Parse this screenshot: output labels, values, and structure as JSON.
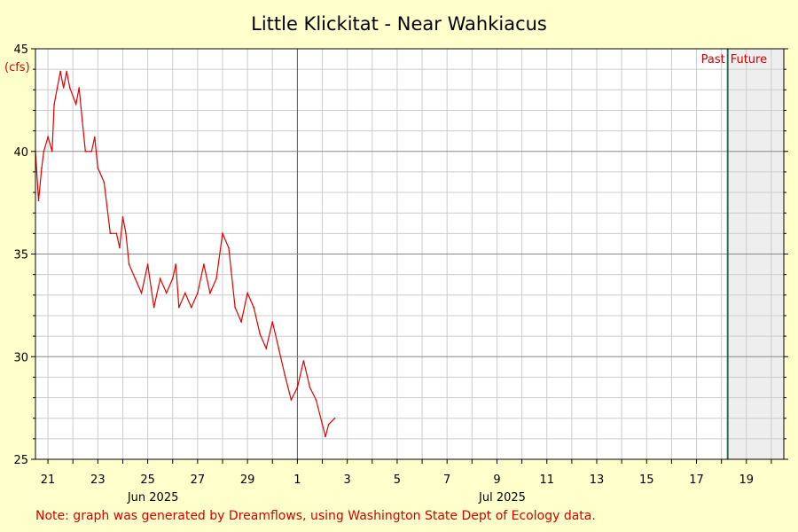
{
  "chart_data": {
    "type": "line",
    "title": "Little Klickitat - Near Wahkiacus",
    "ylabel": "(cfs)",
    "ylim": [
      25,
      45
    ],
    "y_ticks": [
      25,
      30,
      35,
      40,
      45
    ],
    "x_range": [
      "2025-06-20T12:00",
      "2025-07-20T12:00"
    ],
    "x_day_labels": [
      {
        "date": "2025-06-21",
        "label": "21"
      },
      {
        "date": "2025-06-23",
        "label": "23"
      },
      {
        "date": "2025-06-25",
        "label": "25"
      },
      {
        "date": "2025-06-27",
        "label": "27"
      },
      {
        "date": "2025-06-29",
        "label": "29"
      },
      {
        "date": "2025-07-01",
        "label": "1"
      },
      {
        "date": "2025-07-03",
        "label": "3"
      },
      {
        "date": "2025-07-05",
        "label": "5"
      },
      {
        "date": "2025-07-07",
        "label": "7"
      },
      {
        "date": "2025-07-09",
        "label": "9"
      },
      {
        "date": "2025-07-11",
        "label": "11"
      },
      {
        "date": "2025-07-13",
        "label": "13"
      },
      {
        "date": "2025-07-15",
        "label": "15"
      },
      {
        "date": "2025-07-17",
        "label": "17"
      },
      {
        "date": "2025-07-19",
        "label": "19"
      }
    ],
    "x_month_labels": [
      {
        "date": "2025-06-25",
        "label": "Jun 2025"
      },
      {
        "date": "2025-07-09",
        "label": "Jul 2025"
      }
    ],
    "now_marker": "2025-07-18T06:00",
    "past_label": "Past",
    "future_label": "Future",
    "grid": true,
    "series": [
      {
        "color": "#e00000",
        "points": [
          [
            "2025-06-20T12:00",
            40.0
          ],
          [
            "2025-06-20T15:00",
            37.6
          ],
          [
            "2025-06-20T18:00",
            39.2
          ],
          [
            "2025-06-20T20:00",
            40.0
          ],
          [
            "2025-06-21T00:00",
            40.7
          ],
          [
            "2025-06-21T04:00",
            40.0
          ],
          [
            "2025-06-21T06:00",
            42.3
          ],
          [
            "2025-06-21T09:00",
            43.1
          ],
          [
            "2025-06-21T12:00",
            43.9
          ],
          [
            "2025-06-21T15:00",
            43.1
          ],
          [
            "2025-06-21T18:00",
            43.9
          ],
          [
            "2025-06-21T21:00",
            43.1
          ],
          [
            "2025-06-22T03:00",
            42.3
          ],
          [
            "2025-06-22T06:00",
            43.1
          ],
          [
            "2025-06-22T09:00",
            41.5
          ],
          [
            "2025-06-22T12:00",
            40.0
          ],
          [
            "2025-06-22T18:00",
            40.0
          ],
          [
            "2025-06-22T21:00",
            40.7
          ],
          [
            "2025-06-23T00:00",
            39.2
          ],
          [
            "2025-06-23T06:00",
            38.5
          ],
          [
            "2025-06-23T12:00",
            36.0
          ],
          [
            "2025-06-23T18:00",
            36.0
          ],
          [
            "2025-06-23T21:00",
            35.3
          ],
          [
            "2025-06-24T00:00",
            36.8
          ],
          [
            "2025-06-24T03:00",
            36.0
          ],
          [
            "2025-06-24T06:00",
            34.5
          ],
          [
            "2025-06-24T12:00",
            33.8
          ],
          [
            "2025-06-24T18:00",
            33.1
          ],
          [
            "2025-06-25T00:00",
            34.5
          ],
          [
            "2025-06-25T06:00",
            32.4
          ],
          [
            "2025-06-25T12:00",
            33.8
          ],
          [
            "2025-06-25T18:00",
            33.1
          ],
          [
            "2025-06-26T00:00",
            33.8
          ],
          [
            "2025-06-26T03:00",
            34.5
          ],
          [
            "2025-06-26T06:00",
            32.4
          ],
          [
            "2025-06-26T12:00",
            33.1
          ],
          [
            "2025-06-26T18:00",
            32.4
          ],
          [
            "2025-06-27T00:00",
            33.1
          ],
          [
            "2025-06-27T06:00",
            34.5
          ],
          [
            "2025-06-27T12:00",
            33.1
          ],
          [
            "2025-06-27T18:00",
            33.8
          ],
          [
            "2025-06-28T00:00",
            36.0
          ],
          [
            "2025-06-28T06:00",
            35.3
          ],
          [
            "2025-06-28T12:00",
            32.4
          ],
          [
            "2025-06-28T18:00",
            31.7
          ],
          [
            "2025-06-29T00:00",
            33.1
          ],
          [
            "2025-06-29T06:00",
            32.4
          ],
          [
            "2025-06-29T12:00",
            31.1
          ],
          [
            "2025-06-29T18:00",
            30.4
          ],
          [
            "2025-06-30T00:00",
            31.7
          ],
          [
            "2025-06-30T06:00",
            30.4
          ],
          [
            "2025-06-30T12:00",
            29.1
          ],
          [
            "2025-06-30T18:00",
            27.9
          ],
          [
            "2025-07-01T00:00",
            28.5
          ],
          [
            "2025-07-01T06:00",
            29.8
          ],
          [
            "2025-07-01T12:00",
            28.5
          ],
          [
            "2025-07-01T18:00",
            27.9
          ],
          [
            "2025-07-02T00:00",
            26.7
          ],
          [
            "2025-07-02T03:00",
            26.1
          ],
          [
            "2025-07-02T06:00",
            26.7
          ],
          [
            "2025-07-02T12:00",
            27.0
          ]
        ]
      }
    ]
  },
  "note": "Note: graph was generated by Dreamflows, using Washington State Dept of Ecology data.",
  "colors": {
    "background": "#ffffcc",
    "plot_bg": "#ffffff",
    "future_bg": "#eeeeee",
    "line": "#e00000",
    "now_line": "#2e6b5a",
    "text_red": "#d40000"
  }
}
